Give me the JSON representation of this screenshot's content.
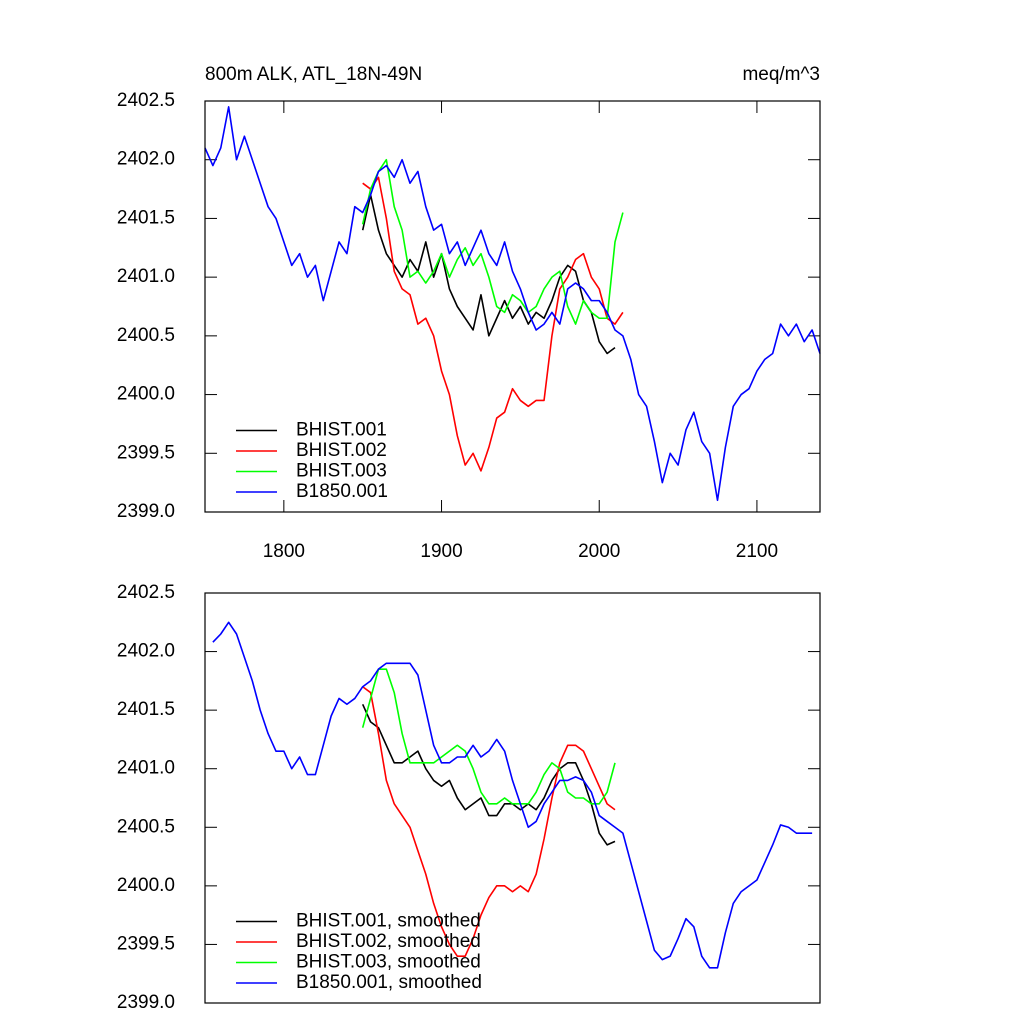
{
  "chart_data": [
    {
      "type": "line",
      "title": "800m ALK, ATL_18N-49N",
      "units": "meq/m^3",
      "x": [
        1750,
        1755,
        1760,
        1765,
        1770,
        1775,
        1780,
        1785,
        1790,
        1795,
        1800,
        1805,
        1810,
        1815,
        1820,
        1825,
        1830,
        1835,
        1840,
        1845,
        1850,
        1855,
        1860,
        1865,
        1870,
        1875,
        1880,
        1885,
        1890,
        1895,
        1900,
        1905,
        1910,
        1915,
        1920,
        1925,
        1930,
        1935,
        1940,
        1945,
        1950,
        1955,
        1960,
        1965,
        1970,
        1975,
        1980,
        1985,
        1990,
        1995,
        2000,
        2005,
        2010,
        2015,
        2020,
        2025,
        2030,
        2035,
        2040,
        2045,
        2050,
        2055,
        2060,
        2065,
        2070,
        2075,
        2080,
        2085,
        2090,
        2095,
        2100,
        2105,
        2110,
        2115,
        2120,
        2125,
        2130,
        2135,
        2140
      ],
      "series": [
        {
          "name": "BHIST.001",
          "color": "#000000",
          "values": [
            null,
            null,
            null,
            null,
            null,
            null,
            null,
            null,
            null,
            null,
            null,
            null,
            null,
            null,
            null,
            null,
            null,
            null,
            null,
            null,
            2401.4,
            2401.7,
            2401.4,
            2401.2,
            2401.1,
            2401.0,
            2401.15,
            2401.05,
            2401.3,
            2401.0,
            2401.2,
            2400.9,
            2400.75,
            2400.65,
            2400.55,
            2400.85,
            2400.5,
            2400.65,
            2400.8,
            2400.65,
            2400.75,
            2400.6,
            2400.7,
            2400.65,
            2400.8,
            2401.0,
            2401.1,
            2401.05,
            2400.8,
            2400.7,
            2400.45,
            2400.35,
            2400.4,
            null,
            null,
            null,
            null,
            null,
            null,
            null,
            null,
            null,
            null,
            null,
            null,
            null,
            null,
            null,
            null,
            null,
            null,
            null,
            null,
            null,
            null,
            null,
            null,
            null,
            null
          ]
        },
        {
          "name": "BHIST.002",
          "color": "#ff0000",
          "values": [
            null,
            null,
            null,
            null,
            null,
            null,
            null,
            null,
            null,
            null,
            null,
            null,
            null,
            null,
            null,
            null,
            null,
            null,
            null,
            null,
            2401.8,
            2401.75,
            2401.85,
            2401.5,
            2401.05,
            2400.9,
            2400.85,
            2400.6,
            2400.65,
            2400.5,
            2400.2,
            2400.0,
            2399.65,
            2399.4,
            2399.5,
            2399.35,
            2399.55,
            2399.8,
            2399.85,
            2400.05,
            2399.95,
            2399.9,
            2399.95,
            2399.95,
            2400.5,
            2400.9,
            2401.0,
            2401.15,
            2401.2,
            2401.0,
            2400.9,
            2400.65,
            2400.6,
            2400.7,
            null,
            null,
            null,
            null,
            null,
            null,
            null,
            null,
            null,
            null,
            null,
            null,
            null,
            null,
            null,
            null,
            null,
            null,
            null,
            null,
            null,
            null,
            null,
            null,
            null
          ]
        },
        {
          "name": "BHIST.003",
          "color": "#00ff00",
          "values": [
            null,
            null,
            null,
            null,
            null,
            null,
            null,
            null,
            null,
            null,
            null,
            null,
            null,
            null,
            null,
            null,
            null,
            null,
            null,
            null,
            2401.45,
            2401.75,
            2401.9,
            2402.0,
            2401.6,
            2401.4,
            2401.0,
            2401.05,
            2400.95,
            2401.05,
            2401.2,
            2401.0,
            2401.15,
            2401.25,
            2401.1,
            2401.2,
            2401.0,
            2400.75,
            2400.7,
            2400.85,
            2400.8,
            2400.7,
            2400.75,
            2400.9,
            2401.0,
            2401.05,
            2400.75,
            2400.6,
            2400.8,
            2400.7,
            2400.65,
            2400.65,
            2401.3,
            2401.55,
            null,
            null,
            null,
            null,
            null,
            null,
            null,
            null,
            null,
            null,
            null,
            null,
            null,
            null,
            null,
            null,
            null,
            null,
            null,
            null,
            null,
            null,
            null,
            null,
            null
          ]
        },
        {
          "name": "B1850.001",
          "color": "#0000ff",
          "values": [
            2402.1,
            2401.95,
            2402.1,
            2402.45,
            2402.0,
            2402.2,
            2402.0,
            2401.8,
            2401.6,
            2401.5,
            2401.3,
            2401.1,
            2401.2,
            2401.0,
            2401.1,
            2400.8,
            2401.05,
            2401.3,
            2401.2,
            2401.6,
            2401.55,
            2401.7,
            2401.9,
            2401.95,
            2401.85,
            2402.0,
            2401.8,
            2401.9,
            2401.6,
            2401.4,
            2401.45,
            2401.2,
            2401.3,
            2401.1,
            2401.25,
            2401.4,
            2401.2,
            2401.1,
            2401.3,
            2401.05,
            2400.9,
            2400.7,
            2400.55,
            2400.6,
            2400.7,
            2400.6,
            2400.9,
            2400.95,
            2400.9,
            2400.8,
            2400.8,
            2400.7,
            2400.55,
            2400.5,
            2400.3,
            2400.0,
            2399.9,
            2399.6,
            2399.25,
            2399.5,
            2399.4,
            2399.7,
            2399.85,
            2399.6,
            2399.5,
            2399.1,
            2399.55,
            2399.9,
            2400.0,
            2400.05,
            2400.2,
            2400.3,
            2400.35,
            2400.6,
            2400.5,
            2400.6,
            2400.45,
            2400.55,
            2400.35
          ]
        }
      ],
      "xlim": [
        1750,
        2140
      ],
      "xticks": [
        1800,
        1900,
        2000,
        2100
      ],
      "ylim": [
        2399,
        2402.5
      ],
      "yticks": [
        {
          "value": 2399,
          "label": "2399.0"
        },
        2399.5,
        {
          "value": 2400,
          "label": "2400.0"
        },
        2400.5,
        {
          "value": 2401,
          "label": "2401.0"
        },
        2401.5,
        {
          "value": 2402,
          "label": "2402.0"
        },
        2402.5
      ],
      "legend": "lower left"
    },
    {
      "type": "line",
      "x": [
        1750,
        1755,
        1760,
        1765,
        1770,
        1775,
        1780,
        1785,
        1790,
        1795,
        1800,
        1805,
        1810,
        1815,
        1820,
        1825,
        1830,
        1835,
        1840,
        1845,
        1850,
        1855,
        1860,
        1865,
        1870,
        1875,
        1880,
        1885,
        1890,
        1895,
        1900,
        1905,
        1910,
        1915,
        1920,
        1925,
        1930,
        1935,
        1940,
        1945,
        1950,
        1955,
        1960,
        1965,
        1970,
        1975,
        1980,
        1985,
        1990,
        1995,
        2000,
        2005,
        2010,
        2015,
        2020,
        2025,
        2030,
        2035,
        2040,
        2045,
        2050,
        2055,
        2060,
        2065,
        2070,
        2075,
        2080,
        2085,
        2090,
        2095,
        2100,
        2105,
        2110,
        2115,
        2120,
        2125,
        2130,
        2135,
        2140
      ],
      "series": [
        {
          "name": "BHIST.001, smoothed",
          "color": "#000000",
          "values": [
            null,
            null,
            null,
            null,
            null,
            null,
            null,
            null,
            null,
            null,
            null,
            null,
            null,
            null,
            null,
            null,
            null,
            null,
            null,
            null,
            2401.55,
            2401.4,
            2401.35,
            2401.2,
            2401.05,
            2401.05,
            2401.1,
            2401.15,
            2401.0,
            2400.9,
            2400.85,
            2400.9,
            2400.75,
            2400.65,
            2400.7,
            2400.75,
            2400.6,
            2400.6,
            2400.7,
            2400.7,
            2400.65,
            2400.7,
            2400.65,
            2400.75,
            2400.9,
            2401.0,
            2401.05,
            2401.05,
            2400.9,
            2400.7,
            2400.45,
            2400.35,
            2400.38,
            null,
            null,
            null,
            null,
            null,
            null,
            null,
            null,
            null,
            null,
            null,
            null,
            null,
            null,
            null,
            null,
            null,
            null,
            null,
            null,
            null,
            null,
            null,
            null,
            null,
            null
          ]
        },
        {
          "name": "BHIST.002, smoothed",
          "color": "#ff0000",
          "values": [
            null,
            null,
            null,
            null,
            null,
            null,
            null,
            null,
            null,
            null,
            null,
            null,
            null,
            null,
            null,
            null,
            null,
            null,
            null,
            null,
            2401.7,
            2401.65,
            2401.3,
            2400.9,
            2400.7,
            2400.6,
            2400.5,
            2400.3,
            2400.1,
            2399.85,
            2399.65,
            2399.5,
            2399.4,
            2399.4,
            2399.55,
            2399.75,
            2399.9,
            2400.0,
            2400.0,
            2399.95,
            2400.0,
            2399.95,
            2400.1,
            2400.4,
            2400.75,
            2401.05,
            2401.2,
            2401.2,
            2401.15,
            2401.0,
            2400.85,
            2400.7,
            2400.65,
            null,
            null,
            null,
            null,
            null,
            null,
            null,
            null,
            null,
            null,
            null,
            null,
            null,
            null,
            null,
            null,
            null,
            null,
            null,
            null,
            null,
            null,
            null,
            null,
            null,
            null
          ]
        },
        {
          "name": "BHIST.003, smoothed",
          "color": "#00ff00",
          "values": [
            null,
            null,
            null,
            null,
            null,
            null,
            null,
            null,
            null,
            null,
            null,
            null,
            null,
            null,
            null,
            null,
            null,
            null,
            null,
            null,
            2401.35,
            2401.6,
            2401.85,
            2401.85,
            2401.65,
            2401.3,
            2401.05,
            2401.05,
            2401.05,
            2401.05,
            2401.1,
            2401.15,
            2401.2,
            2401.15,
            2401.0,
            2400.8,
            2400.7,
            2400.7,
            2400.75,
            2400.7,
            2400.7,
            2400.7,
            2400.8,
            2400.95,
            2401.05,
            2401.0,
            2400.8,
            2400.75,
            2400.75,
            2400.7,
            2400.7,
            2400.8,
            2401.05,
            null,
            null,
            null,
            null,
            null,
            null,
            null,
            null,
            null,
            null,
            null,
            null,
            null,
            null,
            null,
            null,
            null,
            null,
            null,
            null,
            null,
            null,
            null,
            null,
            null,
            null
          ]
        },
        {
          "name": "B1850.001, smoothed",
          "color": "#0000ff",
          "values": [
            null,
            2402.08,
            2402.15,
            2402.25,
            2402.15,
            2401.95,
            2401.75,
            2401.5,
            2401.3,
            2401.15,
            2401.15,
            2401.0,
            2401.1,
            2400.95,
            2400.95,
            2401.2,
            2401.45,
            2401.6,
            2401.55,
            2401.6,
            2401.7,
            2401.75,
            2401.85,
            2401.9,
            2401.9,
            2401.9,
            2401.9,
            2401.8,
            2401.5,
            2401.2,
            2401.05,
            2401.05,
            2401.1,
            2401.1,
            2401.2,
            2401.1,
            2401.15,
            2401.25,
            2401.15,
            2400.9,
            2400.7,
            2400.5,
            2400.55,
            2400.7,
            2400.8,
            2400.9,
            2400.9,
            2400.93,
            2400.9,
            2400.8,
            2400.6,
            2400.55,
            2400.5,
            2400.45,
            2400.2,
            2399.95,
            2399.7,
            2399.45,
            2399.37,
            2399.4,
            2399.55,
            2399.72,
            2399.65,
            2399.4,
            2399.3,
            2399.3,
            2399.6,
            2399.85,
            2399.95,
            2400.0,
            2400.05,
            2400.2,
            2400.35,
            2400.52,
            2400.5,
            2400.45,
            2400.45,
            2400.45,
            null
          ]
        }
      ],
      "xlim": [
        1750,
        2140
      ],
      "ylim": [
        2399,
        2402.5
      ],
      "yticks": [
        {
          "value": 2399,
          "label": "2399.0"
        },
        2399.5,
        {
          "value": 2400,
          "label": "2400.0"
        },
        2400.5,
        {
          "value": 2401,
          "label": "2401.0"
        },
        2401.5,
        {
          "value": 2402,
          "label": "2402.0"
        },
        2402.5
      ],
      "legend": "lower left"
    }
  ]
}
